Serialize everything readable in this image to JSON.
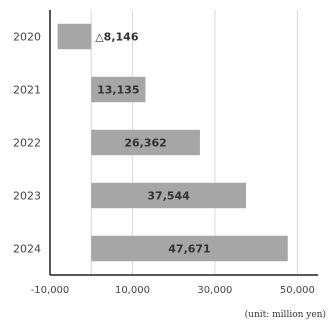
{
  "chart_data": {
    "type": "bar",
    "orientation": "horizontal",
    "categories": [
      "2020",
      "2021",
      "2022",
      "2023",
      "2024"
    ],
    "values": [
      -8146,
      13135,
      26362,
      37544,
      47671
    ],
    "data_labels": [
      "△8,146",
      "13,135",
      "26,362",
      "37,544",
      "47,671"
    ],
    "xlim": [
      -10000,
      55000
    ],
    "x_ticks": [
      -10000,
      10000,
      30000,
      50000
    ],
    "x_tick_labels": [
      "-10,000",
      "10,000",
      "30,000",
      "50,000"
    ],
    "grid": "vertical",
    "legend": "none",
    "bar_color": "#a6a6a6",
    "axis_color": "#222222",
    "grid_color": "#d9d9d9"
  },
  "unit_note": "(unit: million yen)"
}
